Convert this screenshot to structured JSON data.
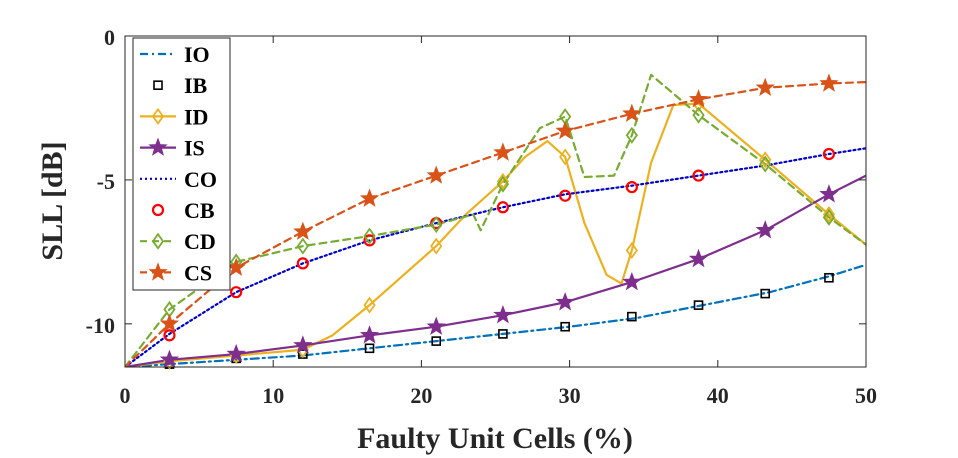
{
  "chart_data": {
    "type": "line",
    "title": "",
    "xlabel": "Faulty Unit Cells (%)",
    "ylabel": "SLL [dB]",
    "xlim": [
      0,
      50
    ],
    "ylim": [
      -11.5,
      0
    ],
    "xticks": [
      0,
      10,
      20,
      30,
      40,
      50
    ],
    "yticks": [
      0,
      -5,
      -10
    ],
    "xtick_labels": [
      "0",
      "10",
      "20",
      "30",
      "40",
      "50"
    ],
    "ytick_labels": [
      "0",
      "-5",
      "-10"
    ],
    "grid": false,
    "legend_position": "top-left",
    "series": [
      {
        "name": "IO",
        "color": "#0072BD",
        "dash": "dashdot",
        "marker": "none",
        "x": [
          0,
          3,
          7.5,
          12,
          16.5,
          21,
          25.5,
          30,
          34.5,
          39,
          43.5,
          47.5,
          50
        ],
        "y": [
          -11.5,
          -11.4,
          -11.25,
          -11.1,
          -10.85,
          -10.6,
          -10.35,
          -10.1,
          -9.8,
          -9.35,
          -8.9,
          -8.35,
          -7.95
        ]
      },
      {
        "name": "IB",
        "color": "#000000",
        "dash": "none",
        "marker": "square",
        "x": [
          3,
          7.5,
          12,
          16.5,
          21,
          25.5,
          29.7,
          34.2,
          38.7,
          43.2,
          47.5
        ],
        "y": [
          -11.4,
          -11.2,
          -11.05,
          -10.85,
          -10.6,
          -10.35,
          -10.1,
          -9.75,
          -9.35,
          -8.95,
          -8.4
        ]
      },
      {
        "name": "ID",
        "color": "#EDB120",
        "dash": "solid",
        "marker": "diamond",
        "x": [
          0,
          3,
          7.5,
          12,
          14,
          16.5,
          21,
          23,
          25.5,
          27,
          28.5,
          29.7,
          31,
          32.5,
          33.5,
          34.2,
          35.5,
          37,
          38.7,
          43.2,
          47.5,
          50
        ],
        "y": [
          -11.5,
          -11.3,
          -11.1,
          -10.9,
          -10.4,
          -9.35,
          -7.3,
          -6.2,
          -5.05,
          -4.2,
          -3.65,
          -4.2,
          -6.5,
          -8.3,
          -8.6,
          -7.45,
          -4.4,
          -2.4,
          -2.35,
          -4.3,
          -6.2,
          -7.25
        ],
        "marker_x": [
          3,
          7.5,
          12,
          16.5,
          21,
          25.5,
          29.7,
          34.2,
          38.7,
          43.2,
          47.5
        ],
        "marker_y": [
          -11.3,
          -11.1,
          -10.9,
          -9.35,
          -7.3,
          -5.05,
          -4.2,
          -7.45,
          -2.35,
          -4.3,
          -6.2
        ]
      },
      {
        "name": "IS",
        "color": "#7E2F8E",
        "dash": "solid",
        "marker": "star",
        "x": [
          0,
          3,
          7.5,
          12,
          16.5,
          21,
          25.5,
          29.7,
          34.2,
          38.7,
          43.2,
          47.5,
          50
        ],
        "y": [
          -11.5,
          -11.25,
          -11.05,
          -10.75,
          -10.4,
          -10.1,
          -9.7,
          -9.25,
          -8.55,
          -7.75,
          -6.75,
          -5.5,
          -4.85
        ],
        "marker_x": [
          3,
          7.5,
          12,
          16.5,
          21,
          25.5,
          29.7,
          34.2,
          38.7,
          43.2,
          47.5
        ],
        "marker_y": [
          -11.25,
          -11.05,
          -10.75,
          -10.4,
          -10.1,
          -9.7,
          -9.25,
          -8.55,
          -7.75,
          -6.75,
          -5.5
        ]
      },
      {
        "name": "CO",
        "color": "#0000CC",
        "dash": "dotted",
        "marker": "none",
        "x": [
          0,
          3,
          7.5,
          12,
          16.5,
          21,
          25.5,
          29.7,
          34.2,
          38.7,
          43.2,
          47.5,
          50
        ],
        "y": [
          -11.5,
          -10.35,
          -8.9,
          -7.9,
          -7.1,
          -6.5,
          -5.95,
          -5.5,
          -5.2,
          -4.85,
          -4.5,
          -4.1,
          -3.9
        ]
      },
      {
        "name": "CB",
        "color": "#FF0000",
        "dash": "none",
        "marker": "circle",
        "x": [
          3,
          7.5,
          12,
          16.5,
          21,
          25.5,
          29.7,
          34.2,
          38.7,
          47.5
        ],
        "y": [
          -10.4,
          -8.9,
          -7.9,
          -7.1,
          -6.5,
          -5.95,
          -5.55,
          -5.25,
          -4.85,
          -4.1
        ]
      },
      {
        "name": "CD",
        "color": "#77AC30",
        "dash": "dashed",
        "marker": "diamond",
        "x": [
          0,
          3,
          7.5,
          12,
          16.5,
          21,
          23.5,
          24,
          25.5,
          28,
          29.7,
          31,
          33,
          34.2,
          35.5,
          37,
          38.7,
          43.2,
          47.5,
          50
        ],
        "y": [
          -11.5,
          -9.5,
          -7.85,
          -7.3,
          -6.95,
          -6.55,
          -6.2,
          -6.75,
          -5.15,
          -3.2,
          -2.8,
          -4.9,
          -4.85,
          -3.45,
          -1.35,
          -2.0,
          -2.75,
          -4.45,
          -6.3,
          -7.25
        ],
        "marker_x": [
          3,
          7.5,
          12,
          16.5,
          21,
          25.5,
          29.7,
          34.2,
          38.7,
          43.2,
          47.5
        ],
        "marker_y": [
          -9.5,
          -7.85,
          -7.3,
          -6.95,
          -6.55,
          -5.15,
          -2.8,
          -3.45,
          -2.75,
          -4.45,
          -6.3
        ]
      },
      {
        "name": "CS",
        "color": "#D95319",
        "dash": "dashed",
        "marker": "star",
        "x": [
          0,
          3,
          7.5,
          12,
          16.5,
          21,
          25.5,
          29.7,
          34.2,
          38.7,
          43.2,
          47.5,
          50
        ],
        "y": [
          -11.5,
          -10.0,
          -8.05,
          -6.8,
          -5.65,
          -4.85,
          -4.05,
          -3.3,
          -2.7,
          -2.2,
          -1.8,
          -1.65,
          -1.6
        ],
        "marker_x": [
          3,
          7.5,
          12,
          16.5,
          21,
          25.5,
          29.7,
          34.2,
          38.7,
          43.2,
          47.5
        ],
        "marker_y": [
          -10.0,
          -8.05,
          -6.8,
          -5.65,
          -4.85,
          -4.05,
          -3.3,
          -2.7,
          -2.2,
          -1.8,
          -1.65
        ]
      }
    ]
  }
}
